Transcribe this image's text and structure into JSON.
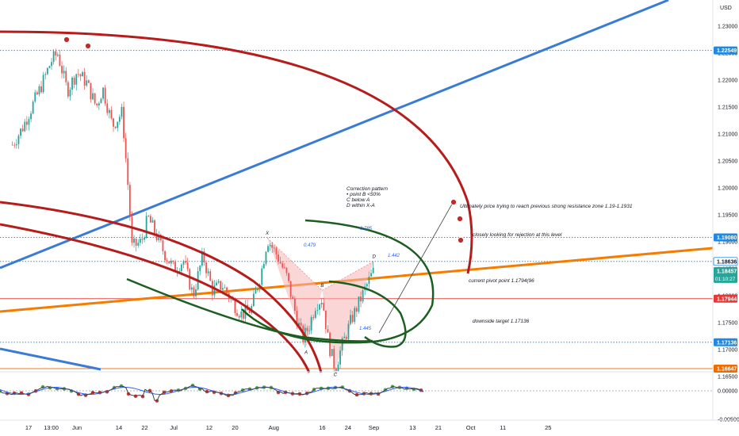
{
  "chart_data": {
    "type": "line",
    "currency": "USD",
    "price_ticks": [
      "1.23000",
      "1.22500",
      "1.22000",
      "1.21500",
      "1.21000",
      "1.20500",
      "1.20000",
      "1.19500",
      "1.19000",
      "1.18500",
      "1.18000",
      "1.17500",
      "1.17000",
      "1.16500"
    ],
    "indicator_ticks": [
      "0.00000",
      "-0.00500"
    ],
    "date_ticks": [
      {
        "label": "17",
        "date": "2021-05-17"
      },
      {
        "label": "13:00",
        "date": "2021-05-24"
      },
      {
        "label": "Jun",
        "date": "2021-06-01"
      },
      {
        "label": "14",
        "date": "2021-06-14"
      },
      {
        "label": "22",
        "date": "2021-06-22"
      },
      {
        "label": "Jul",
        "date": "2021-07-01"
      },
      {
        "label": "12",
        "date": "2021-07-12"
      },
      {
        "label": "20",
        "date": "2021-07-20"
      },
      {
        "label": "Aug",
        "date": "2021-08-01"
      },
      {
        "label": "16",
        "date": "2021-08-16"
      },
      {
        "label": "24",
        "date": "2021-08-24"
      },
      {
        "label": "Sep",
        "date": "2021-09-01"
      },
      {
        "label": "13",
        "date": "2021-09-13"
      },
      {
        "label": "21",
        "date": "2021-09-21"
      },
      {
        "label": "Oct",
        "date": "2021-10-01"
      },
      {
        "label": "11",
        "date": "2021-10-11"
      },
      {
        "label": "25",
        "date": "2021-10-25"
      }
    ],
    "price_series": [
      [
        "2021-05-12",
        1.208
      ],
      [
        "2021-05-15",
        1.211
      ],
      [
        "2021-05-18",
        1.215
      ],
      [
        "2021-05-21",
        1.219
      ],
      [
        "2021-05-24",
        1.2235
      ],
      [
        "2021-05-26",
        1.225
      ],
      [
        "2021-05-29",
        1.218
      ],
      [
        "2021-06-01",
        1.2215
      ],
      [
        "2021-06-04",
        1.2195
      ],
      [
        "2021-06-07",
        1.215
      ],
      [
        "2021-06-09",
        1.2185
      ],
      [
        "2021-06-12",
        1.2115
      ],
      [
        "2021-06-15",
        1.214
      ],
      [
        "2021-06-17",
        1.199
      ],
      [
        "2021-06-18",
        1.189
      ],
      [
        "2021-06-21",
        1.19
      ],
      [
        "2021-06-23",
        1.1945
      ],
      [
        "2021-06-25",
        1.192
      ],
      [
        "2021-06-28",
        1.188
      ],
      [
        "2021-07-01",
        1.185
      ],
      [
        "2021-07-04",
        1.1865
      ],
      [
        "2021-07-07",
        1.18
      ],
      [
        "2021-07-10",
        1.1875
      ],
      [
        "2021-07-13",
        1.181
      ],
      [
        "2021-07-16",
        1.182
      ],
      [
        "2021-07-19",
        1.179
      ],
      [
        "2021-07-22",
        1.1765
      ],
      [
        "2021-07-25",
        1.1775
      ],
      [
        "2021-07-28",
        1.184
      ],
      [
        "2021-07-30",
        1.1905
      ],
      [
        "2021-08-02",
        1.1875
      ],
      [
        "2021-08-05",
        1.1835
      ],
      [
        "2021-08-08",
        1.176
      ],
      [
        "2021-08-10",
        1.172
      ],
      [
        "2021-08-12",
        1.1745
      ],
      [
        "2021-08-14",
        1.1785
      ],
      [
        "2021-08-16",
        1.1795
      ],
      [
        "2021-08-18",
        1.171
      ],
      [
        "2021-08-20",
        1.1665
      ],
      [
        "2021-08-22",
        1.1705
      ],
      [
        "2021-08-25",
        1.1755
      ],
      [
        "2021-08-28",
        1.1795
      ],
      [
        "2021-08-31",
        1.1835
      ],
      [
        "2021-09-01",
        1.1846
      ]
    ],
    "last_price": "1.18457",
    "countdown": "01:10:27",
    "horizontal_levels": [
      {
        "value": "1.22549",
        "color": "#2196f3",
        "style": "dotted"
      },
      {
        "value": "1.19080",
        "color": "#2196f3",
        "style": "dotted"
      },
      {
        "value": "1.18636",
        "color": "#2196f3",
        "style": "dotted"
      },
      {
        "value": "1.17944",
        "color": "#e53935",
        "style": "solid"
      },
      {
        "value": "1.17136",
        "color": "#2196f3",
        "style": "dotted"
      },
      {
        "value": "1.16647",
        "color": "#ef6c00",
        "style": "solid"
      }
    ],
    "harmonic_points": [
      {
        "label": "X",
        "date": "2021-07-30",
        "price": 1.1907
      },
      {
        "label": "A",
        "date": "2021-08-11",
        "price": 1.1705
      },
      {
        "label": "B",
        "date": "2021-08-16",
        "price": 1.181
      },
      {
        "label": "C",
        "date": "2021-08-20",
        "price": 1.1664
      },
      {
        "label": "D",
        "date": "2021-09-01",
        "price": 1.1864
      }
    ],
    "ratios": [
      "0.479",
      "0.785",
      "1.442",
      "1.445"
    ],
    "annotations": [
      "Correction pattern",
      "• point B <50%",
      "C below A",
      "D within X-A",
      "Ultimately price trying to reach previous strong resistance zone 1.19-1.1931",
      "closely looking for rejection at this level",
      "current pivot point 1.1794(96",
      "downside target 1.17136"
    ],
    "grid": false,
    "colors": {
      "up": "#26a69a",
      "down": "#ef5350",
      "trend_blue": "#3a7bd5",
      "trend_orange": "#f57c00",
      "arc_red": "#b71c1c",
      "arc_green": "#1b5e20",
      "pattern_fill": "#f8b4b4"
    }
  }
}
